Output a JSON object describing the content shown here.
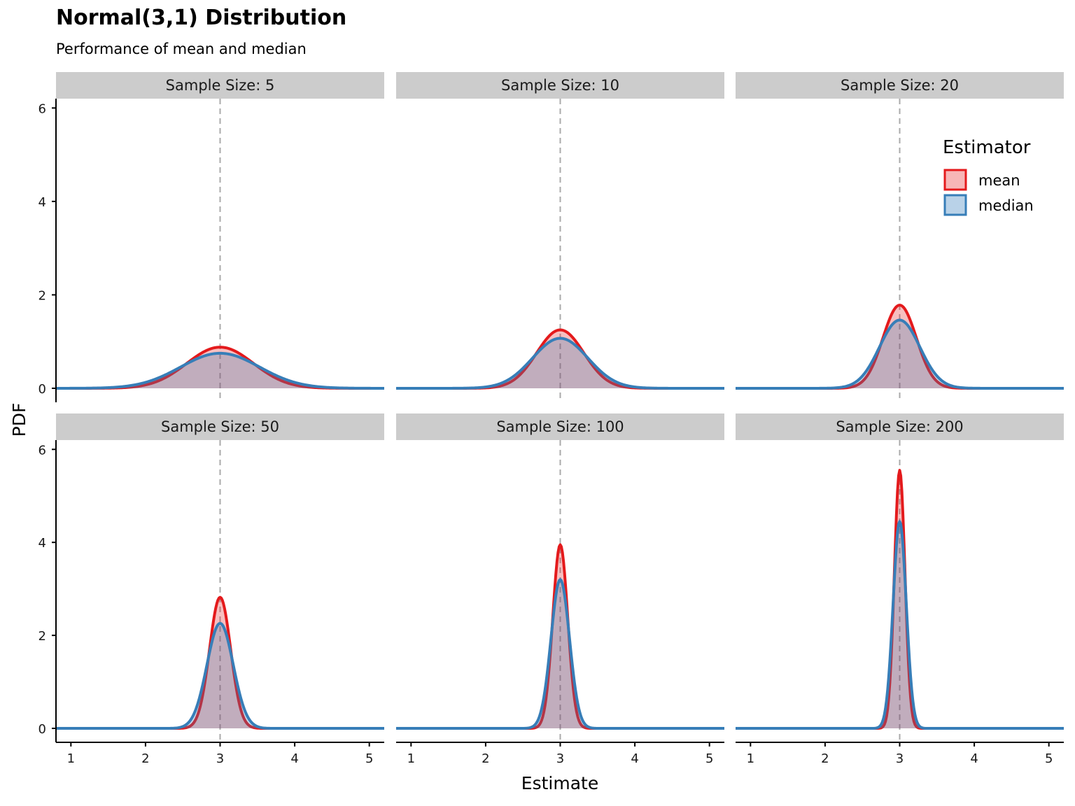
{
  "title": "Normal(3,1) Distribution",
  "subtitle": "Performance of mean and median",
  "chart_data": {
    "type": "area",
    "facet_label_prefix": "Sample Size: ",
    "xlabel": "Estimate",
    "ylabel": "PDF",
    "xlim": [
      0.8,
      5.2
    ],
    "ylim": [
      -0.3,
      6.2
    ],
    "x_ticks": [
      1,
      2,
      3,
      4,
      5
    ],
    "y_ticks": [
      0,
      2,
      4,
      6
    ],
    "reference_line": {
      "x": 3,
      "style": "dashed",
      "color": "#aaaaaa"
    },
    "grid": false,
    "legend": {
      "title": "Estimator",
      "placement": "top-right",
      "entries": [
        {
          "label": "mean",
          "stroke": "#e41a1c",
          "fill": "#f7b6b7"
        },
        {
          "label": "median",
          "stroke": "#377eb8",
          "fill": "#b9d2e8"
        }
      ]
    },
    "facets": [
      {
        "sample_size": "5",
        "series": [
          {
            "name": "mean",
            "center": 3.0,
            "peak": 0.88,
            "sd": 0.447
          },
          {
            "name": "median",
            "center": 3.0,
            "peak": 0.75,
            "sd": 0.53
          }
        ]
      },
      {
        "sample_size": "10",
        "series": [
          {
            "name": "mean",
            "center": 3.0,
            "peak": 1.25,
            "sd": 0.316
          },
          {
            "name": "median",
            "center": 3.0,
            "peak": 1.07,
            "sd": 0.37
          }
        ]
      },
      {
        "sample_size": "20",
        "series": [
          {
            "name": "mean",
            "center": 3.0,
            "peak": 1.78,
            "sd": 0.224
          },
          {
            "name": "median",
            "center": 3.0,
            "peak": 1.46,
            "sd": 0.27
          }
        ]
      },
      {
        "sample_size": "50",
        "series": [
          {
            "name": "mean",
            "center": 3.0,
            "peak": 2.82,
            "sd": 0.141
          },
          {
            "name": "median",
            "center": 3.0,
            "peak": 2.26,
            "sd": 0.176
          }
        ]
      },
      {
        "sample_size": "100",
        "series": [
          {
            "name": "mean",
            "center": 3.0,
            "peak": 3.95,
            "sd": 0.1
          },
          {
            "name": "median",
            "center": 3.0,
            "peak": 3.2,
            "sd": 0.124
          }
        ]
      },
      {
        "sample_size": "200",
        "series": [
          {
            "name": "mean",
            "center": 3.0,
            "peak": 5.55,
            "sd": 0.071
          },
          {
            "name": "median",
            "center": 3.0,
            "peak": 4.45,
            "sd": 0.088
          }
        ]
      }
    ]
  }
}
